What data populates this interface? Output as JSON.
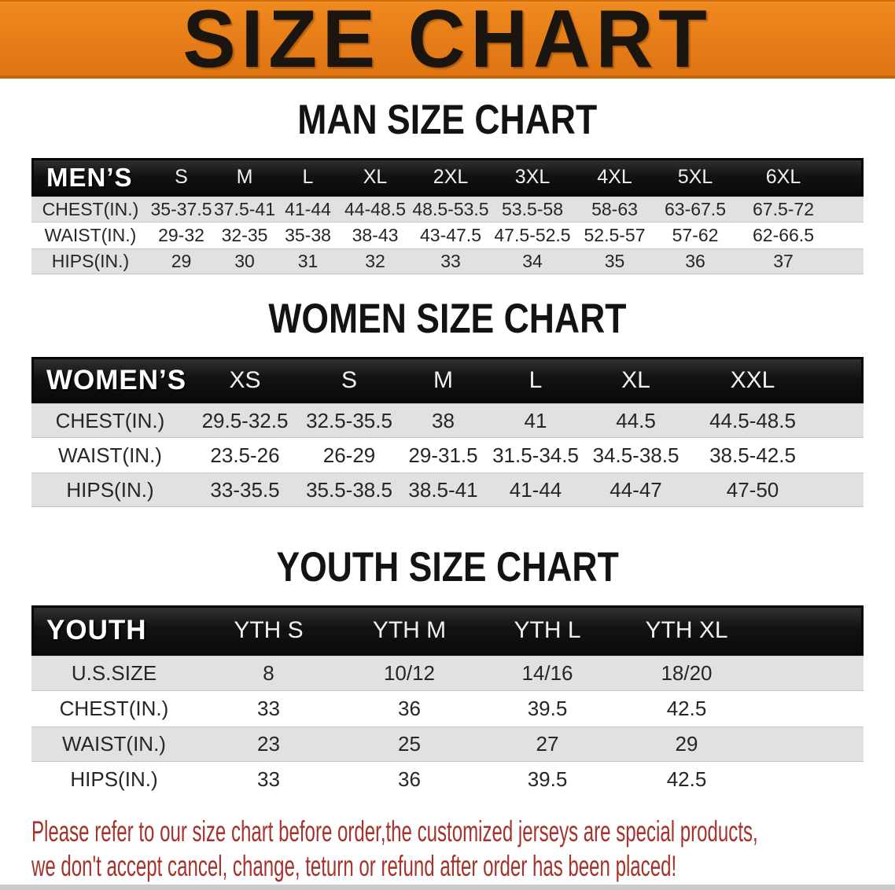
{
  "banner": {
    "title": "SIZE CHART",
    "bg_color": "#e67d19",
    "text_color": "#1b1510"
  },
  "sections": [
    {
      "title": "MAN SIZE CHART",
      "header_label": "MEN’S",
      "columns": [
        "S",
        "M",
        "L",
        "XL",
        "2XL",
        "3XL",
        "4XL",
        "5XL",
        "6XL"
      ],
      "rows": [
        {
          "label": "CHEST(IN.)",
          "values": [
            "35-37.5",
            "37.5-41",
            "41-44",
            "44-48.5",
            "48.5-53.5",
            "53.5-58",
            "58-63",
            "63-67.5",
            "67.5-72"
          ]
        },
        {
          "label": "WAIST(IN.)",
          "values": [
            "29-32",
            "32-35",
            "35-38",
            "38-43",
            "43-47.5",
            "47.5-52.5",
            "52.5-57",
            "57-62",
            "62-66.5"
          ]
        },
        {
          "label": "HIPS(IN.)",
          "values": [
            "29",
            "30",
            "31",
            "32",
            "33",
            "34",
            "35",
            "36",
            "37"
          ]
        }
      ]
    },
    {
      "title": "WOMEN SIZE CHART",
      "header_label": "WOMEN’S",
      "columns": [
        "XS",
        "S",
        "M",
        "L",
        "XL",
        "XXL"
      ],
      "rows": [
        {
          "label": "CHEST(IN.)",
          "values": [
            "29.5-32.5",
            "32.5-35.5",
            "38",
            "41",
            "44.5",
            "44.5-48.5"
          ]
        },
        {
          "label": "WAIST(IN.)",
          "values": [
            "23.5-26",
            "26-29",
            "29-31.5",
            "31.5-34.5",
            "34.5-38.5",
            "38.5-42.5"
          ]
        },
        {
          "label": "HIPS(IN.)",
          "values": [
            "33-35.5",
            "35.5-38.5",
            "38.5-41",
            "41-44",
            "44-47",
            "47-50"
          ]
        }
      ]
    },
    {
      "title": "YOUTH SIZE CHART",
      "header_label": "YOUTH",
      "columns": [
        "YTH S",
        "YTH M",
        "YTH L",
        "YTH XL"
      ],
      "rows": [
        {
          "label": "U.S.SIZE",
          "values": [
            "8",
            "10/12",
            "14/16",
            "18/20"
          ]
        },
        {
          "label": "CHEST(IN.)",
          "values": [
            "33",
            "36",
            "39.5",
            "42.5"
          ]
        },
        {
          "label": "WAIST(IN.)",
          "values": [
            "23",
            "25",
            "27",
            "29"
          ]
        },
        {
          "label": "HIPS(IN.)",
          "values": [
            "33",
            "36",
            "39.5",
            "42.5"
          ]
        }
      ]
    }
  ],
  "disclaimer": {
    "line1": "Please refer to our size chart before order,the customized jerseys are special products,",
    "line2": "we don't accept cancel, change, teturn or refund after order has been placed!",
    "color": "#a5322b"
  }
}
